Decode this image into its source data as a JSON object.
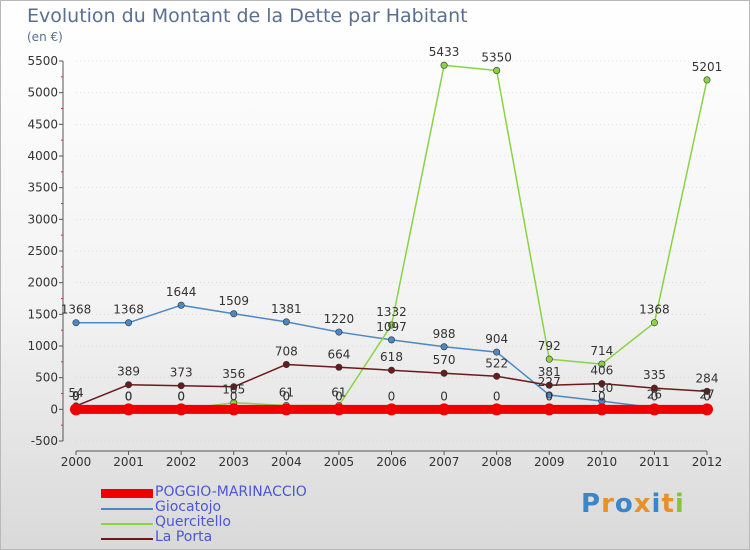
{
  "title": "Evolution du Montant de la Dette par Habitant",
  "subtitle": "(en €)",
  "logo_text": "Proxiti",
  "colors": {
    "POGGIO-MARINACCIO": "#ee0000",
    "Giocatojo": "#4b88c4",
    "Quercitello": "#88d444",
    "La Porta": "#6b1a1a",
    "axis": "#555555",
    "grid": "#cccccc"
  },
  "chart_data": {
    "type": "line",
    "x": [
      "2000",
      "2001",
      "2002",
      "2003",
      "2004",
      "2005",
      "2006",
      "2007",
      "2008",
      "2009",
      "2010",
      "2011",
      "2012"
    ],
    "yticks": [
      -500,
      0,
      500,
      1000,
      1500,
      2000,
      2500,
      3000,
      3500,
      4000,
      4500,
      5000,
      5500
    ],
    "ylim": [
      -500,
      5500
    ],
    "grid": true,
    "legend_position": "bottom-left",
    "series": [
      {
        "name": "POGGIO-MARINACCIO",
        "values": [
          0,
          0,
          0,
          0,
          0,
          0,
          0,
          0,
          0,
          0,
          0,
          0,
          0
        ],
        "labels": [
          "0",
          "0",
          "0",
          "0",
          "0",
          "0",
          "0",
          "0",
          "0",
          "0",
          "0",
          "0",
          "0"
        ]
      },
      {
        "name": "Giocatojo",
        "values": [
          1368,
          1368,
          1644,
          1509,
          1381,
          1220,
          1097,
          988,
          904,
          227,
          130,
          26,
          27
        ],
        "labels": [
          "1368",
          "1368",
          "1644",
          "1509",
          "1381",
          "1220",
          "1097",
          "988",
          "904",
          "227",
          "130",
          "26",
          "27"
        ]
      },
      {
        "name": "Quercitello",
        "values": [
          9,
          0,
          0,
          105,
          61,
          61,
          1332,
          5433,
          5350,
          792,
          714,
          1368,
          5201
        ],
        "labels": [
          "9",
          "0",
          "0",
          "105",
          "61",
          "61",
          "1332",
          "5433",
          "5350",
          "792",
          "714",
          "1368",
          "5201"
        ]
      },
      {
        "name": "La Porta",
        "values": [
          54,
          389,
          373,
          356,
          708,
          664,
          618,
          570,
          522,
          381,
          406,
          335,
          284
        ],
        "labels": [
          "54",
          "389",
          "373",
          "356",
          "708",
          "664",
          "618",
          "570",
          "522",
          "381",
          "406",
          "335",
          "284"
        ]
      }
    ]
  }
}
